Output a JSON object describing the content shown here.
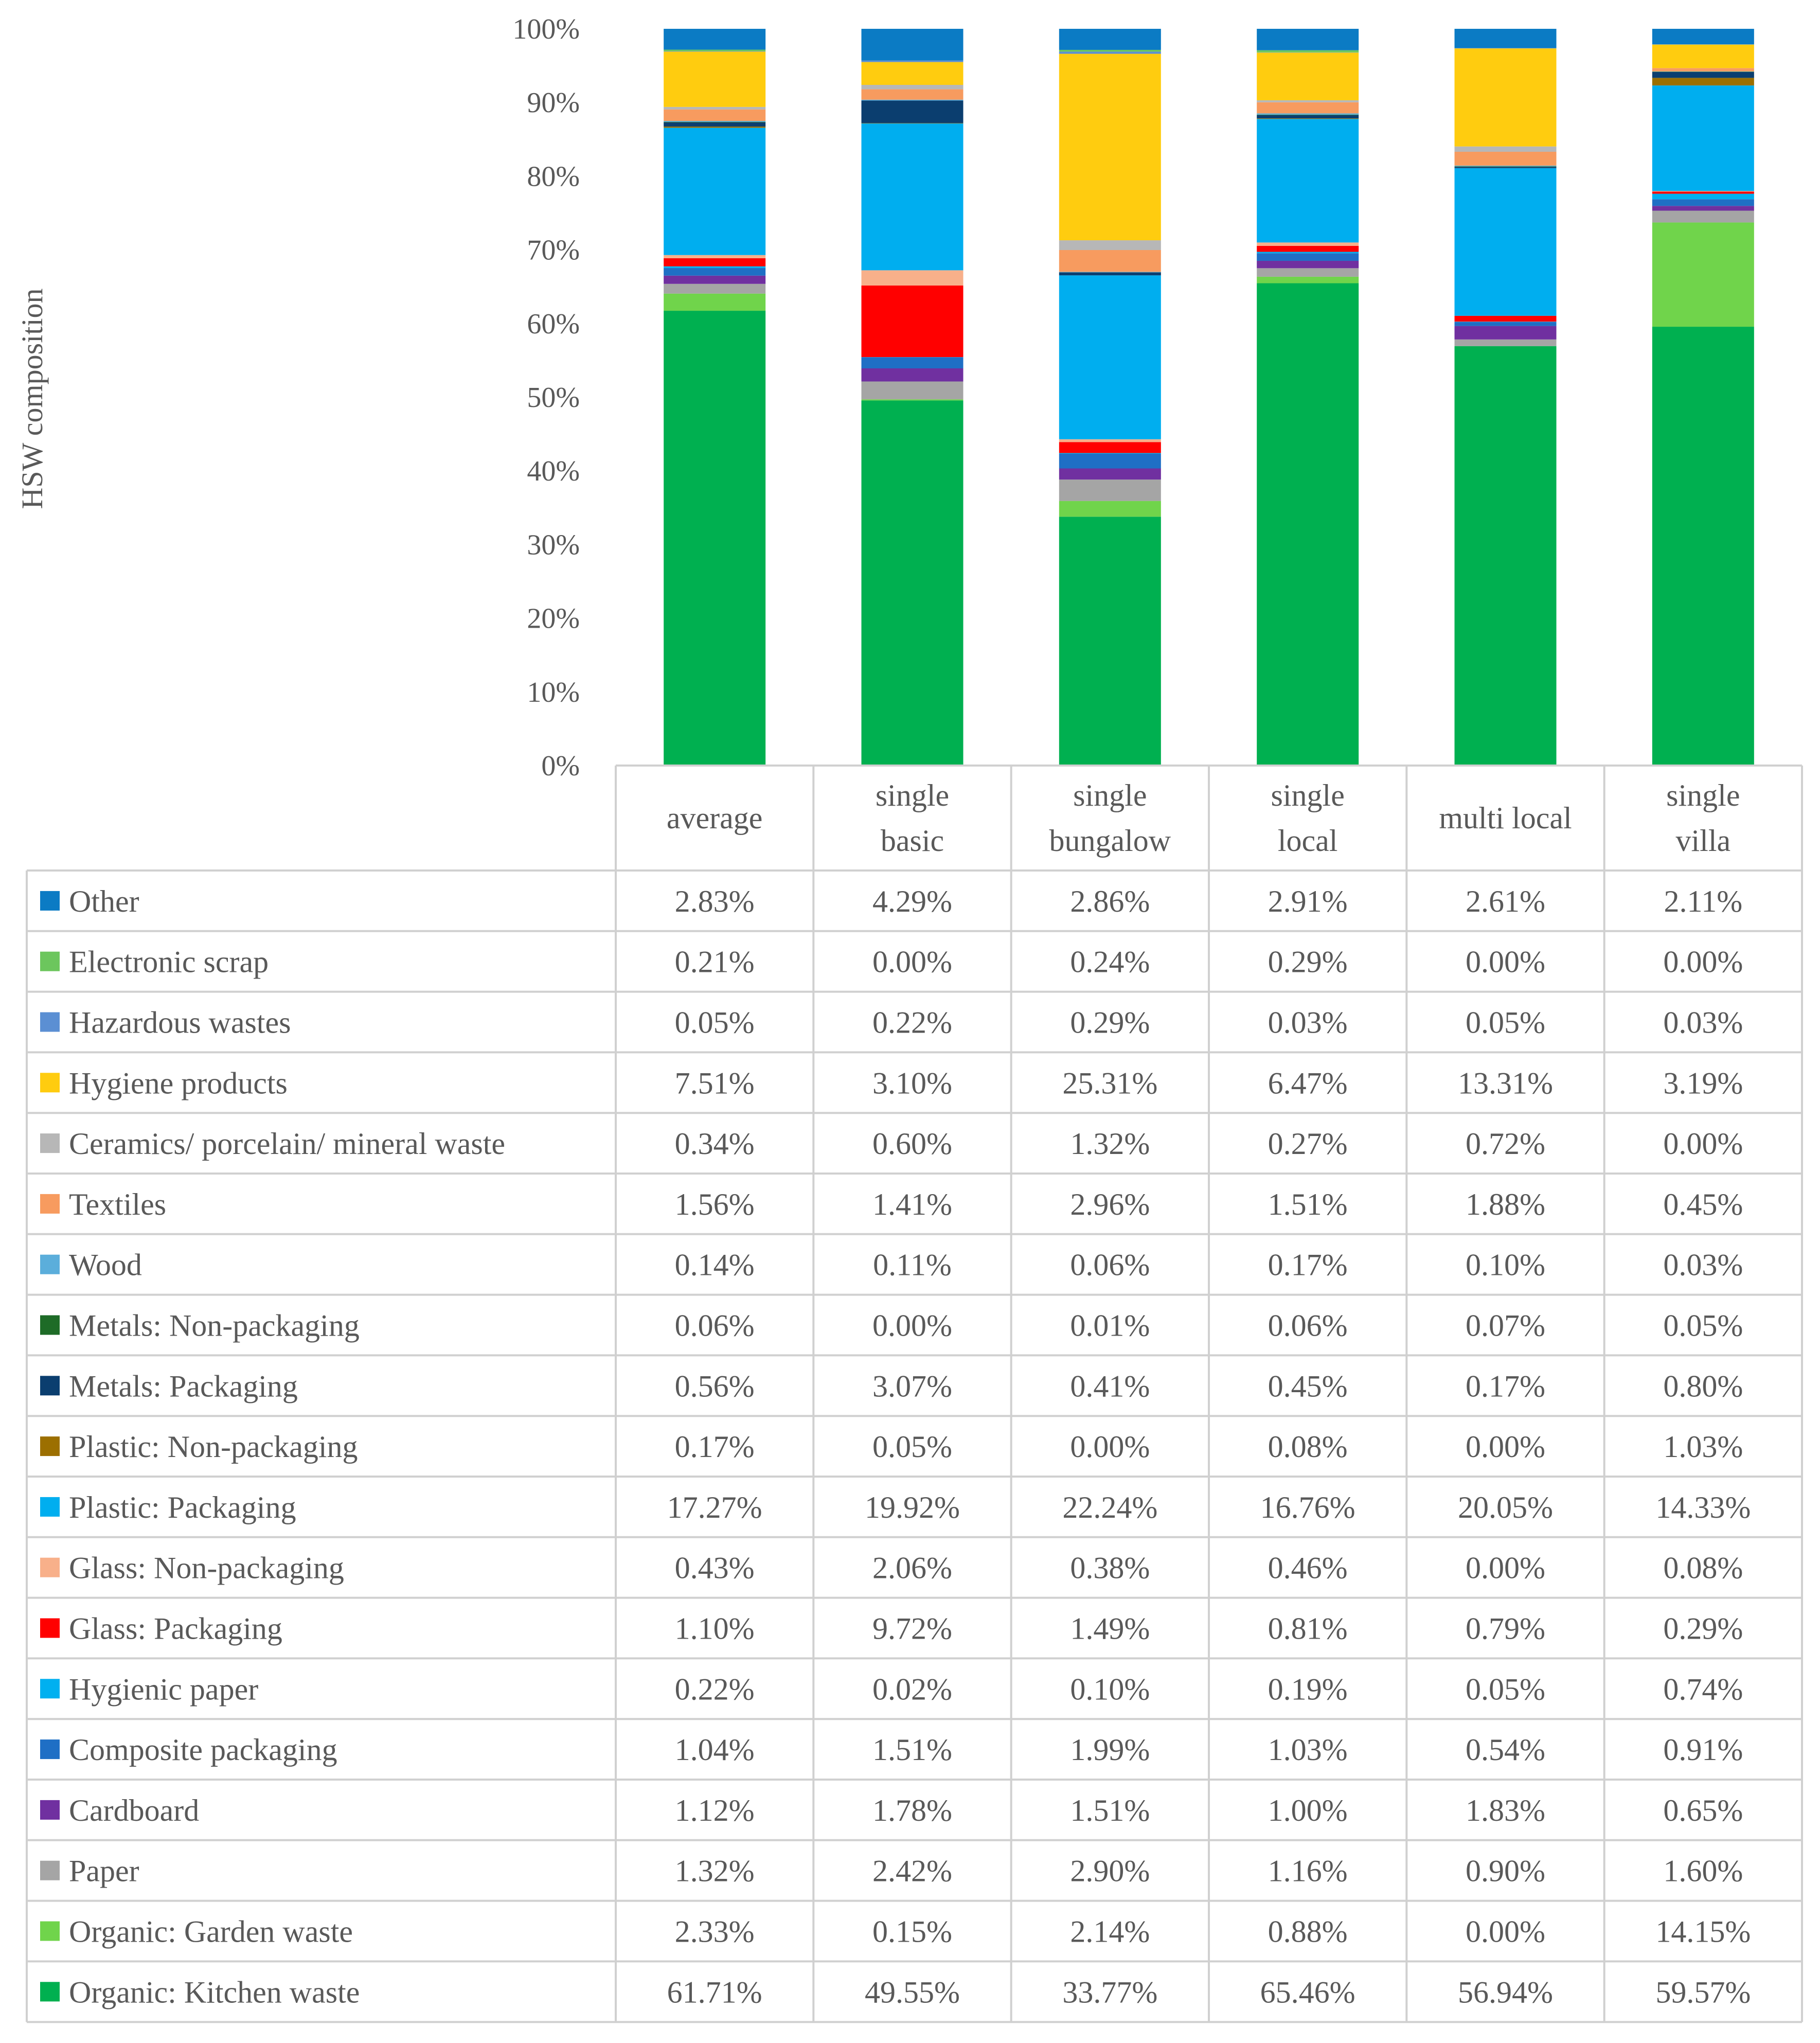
{
  "chart_data": {
    "type": "stacked-bar-with-data-table",
    "ylabel": "HSW composition",
    "y_ticks": [
      "0%",
      "10%",
      "20%",
      "30%",
      "40%",
      "50%",
      "60%",
      "70%",
      "80%",
      "90%",
      "100%"
    ],
    "ylim": [
      0,
      100
    ],
    "grid": false,
    "categories": [
      "average",
      "single basic",
      "single bungalow",
      "single local",
      "multi local",
      "single villa"
    ],
    "category_lines": [
      [
        "average"
      ],
      [
        "single",
        "basic"
      ],
      [
        "single",
        "bungalow"
      ],
      [
        "single",
        "local"
      ],
      [
        "multi local"
      ],
      [
        "single",
        "villa"
      ]
    ],
    "series": [
      {
        "name": "Organic: Kitchen waste",
        "color": "#00B050",
        "values": [
          61.71,
          49.55,
          33.77,
          65.46,
          56.94,
          59.57
        ],
        "labels": [
          "61.71%",
          "49.55%",
          "33.77%",
          "65.46%",
          "56.94%",
          "59.57%"
        ]
      },
      {
        "name": "Organic: Garden waste",
        "color": "#70D44B",
        "values": [
          2.33,
          0.15,
          2.14,
          0.88,
          0.0,
          14.15
        ],
        "labels": [
          "2.33%",
          "0.15%",
          "2.14%",
          "0.88%",
          "0.00%",
          "14.15%"
        ]
      },
      {
        "name": "Paper",
        "color": "#A5A5A5",
        "values": [
          1.32,
          2.42,
          2.9,
          1.16,
          0.9,
          1.6
        ],
        "labels": [
          "1.32%",
          "2.42%",
          "2.90%",
          "1.16%",
          "0.90%",
          "1.60%"
        ]
      },
      {
        "name": "Cardboard",
        "color": "#7030A0",
        "values": [
          1.12,
          1.78,
          1.51,
          1.0,
          1.83,
          0.65
        ],
        "labels": [
          "1.12%",
          "1.78%",
          "1.51%",
          "1.00%",
          "1.83%",
          "0.65%"
        ]
      },
      {
        "name": "Composite packaging",
        "color": "#1F6FC5",
        "values": [
          1.04,
          1.51,
          1.99,
          1.03,
          0.54,
          0.91
        ],
        "labels": [
          "1.04%",
          "1.51%",
          "1.99%",
          "1.03%",
          "0.54%",
          "0.91%"
        ]
      },
      {
        "name": "Hygienic paper",
        "color": "#00B0F0",
        "values": [
          0.22,
          0.02,
          0.1,
          0.19,
          0.05,
          0.74
        ],
        "labels": [
          "0.22%",
          "0.02%",
          "0.10%",
          "0.19%",
          "0.05%",
          "0.74%"
        ]
      },
      {
        "name": "Glass: Packaging",
        "color": "#FF0000",
        "values": [
          1.1,
          9.72,
          1.49,
          0.81,
          0.79,
          0.29
        ],
        "labels": [
          "1.10%",
          "9.72%",
          "1.49%",
          "0.81%",
          "0.79%",
          "0.29%"
        ]
      },
      {
        "name": "Glass: Non-packaging",
        "color": "#F8B08A",
        "values": [
          0.43,
          2.06,
          0.38,
          0.46,
          0.0,
          0.08
        ],
        "labels": [
          "0.43%",
          "2.06%",
          "0.38%",
          "0.46%",
          "0.00%",
          "0.08%"
        ]
      },
      {
        "name": "Plastic: Packaging",
        "color": "#00AEEF",
        "values": [
          17.27,
          19.92,
          22.24,
          16.76,
          20.05,
          14.33
        ],
        "labels": [
          "17.27%",
          "19.92%",
          "22.24%",
          "16.76%",
          "20.05%",
          "14.33%"
        ]
      },
      {
        "name": "Plastic: Non-packaging",
        "color": "#9C6F00",
        "values": [
          0.17,
          0.05,
          0.0,
          0.08,
          0.0,
          1.03
        ],
        "labels": [
          "0.17%",
          "0.05%",
          "0.00%",
          "0.08%",
          "0.00%",
          "1.03%"
        ]
      },
      {
        "name": "Metals: Packaging",
        "color": "#0B3E6F",
        "values": [
          0.56,
          3.07,
          0.41,
          0.45,
          0.17,
          0.8
        ],
        "labels": [
          "0.56%",
          "3.07%",
          "0.41%",
          "0.45%",
          "0.17%",
          "0.80%"
        ]
      },
      {
        "name": "Metals: Non-packaging",
        "color": "#1E6B27",
        "values": [
          0.06,
          0.0,
          0.01,
          0.06,
          0.07,
          0.05
        ],
        "labels": [
          "0.06%",
          "0.00%",
          "0.01%",
          "0.06%",
          "0.07%",
          "0.05%"
        ]
      },
      {
        "name": "Wood",
        "color": "#5BAEDB",
        "values": [
          0.14,
          0.11,
          0.06,
          0.17,
          0.1,
          0.03
        ],
        "labels": [
          "0.14%",
          "0.11%",
          "0.06%",
          "0.17%",
          "0.10%",
          "0.03%"
        ]
      },
      {
        "name": "Textiles",
        "color": "#F79B5F",
        "values": [
          1.56,
          1.41,
          2.96,
          1.51,
          1.88,
          0.45
        ],
        "labels": [
          "1.56%",
          "1.41%",
          "2.96%",
          "1.51%",
          "1.88%",
          "0.45%"
        ]
      },
      {
        "name": "Ceramics/ porcelain/ mineral waste",
        "color": "#B7B7B7",
        "values": [
          0.34,
          0.6,
          1.32,
          0.27,
          0.72,
          0.0
        ],
        "labels": [
          "0.34%",
          "0.60%",
          "1.32%",
          "0.27%",
          "0.72%",
          "0.00%"
        ]
      },
      {
        "name": "Hygiene products",
        "color": "#FFCC0F",
        "values": [
          7.51,
          3.1,
          25.31,
          6.47,
          13.31,
          3.19
        ],
        "labels": [
          "7.51%",
          "3.10%",
          "25.31%",
          "6.47%",
          "13.31%",
          "3.19%"
        ]
      },
      {
        "name": "Hazardous wastes",
        "color": "#5B8FD3",
        "values": [
          0.05,
          0.22,
          0.29,
          0.03,
          0.05,
          0.03
        ],
        "labels": [
          "0.05%",
          "0.22%",
          "0.29%",
          "0.03%",
          "0.05%",
          "0.03%"
        ]
      },
      {
        "name": "Electronic scrap",
        "color": "#6CC65D",
        "values": [
          0.21,
          0.0,
          0.24,
          0.29,
          0.0,
          0.0
        ],
        "labels": [
          "0.21%",
          "0.00%",
          "0.24%",
          "0.29%",
          "0.00%",
          "0.00%"
        ]
      },
      {
        "name": "Other",
        "color": "#0B7BC4",
        "values": [
          2.83,
          4.29,
          2.86,
          2.91,
          2.61,
          2.11
        ],
        "labels": [
          "2.83%",
          "4.29%",
          "2.86%",
          "2.91%",
          "2.61%",
          "2.11%"
        ]
      }
    ]
  }
}
